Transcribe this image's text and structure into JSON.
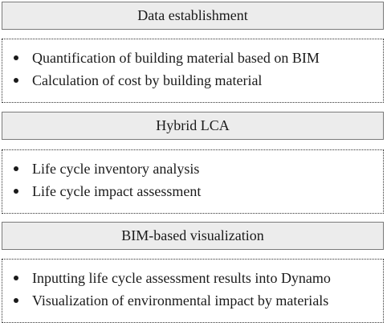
{
  "sections": [
    {
      "title": "Data establishment",
      "items": [
        "Quantification of building material based on BIM",
        "Calculation of cost by building material"
      ]
    },
    {
      "title": "Hybrid LCA",
      "items": [
        "Life cycle inventory analysis",
        "Life cycle impact assessment"
      ]
    },
    {
      "title": "BIM-based visualization",
      "items": [
        "Inputting life cycle assessment results into Dynamo",
        "Visualization of environmental impact by materials"
      ]
    }
  ]
}
